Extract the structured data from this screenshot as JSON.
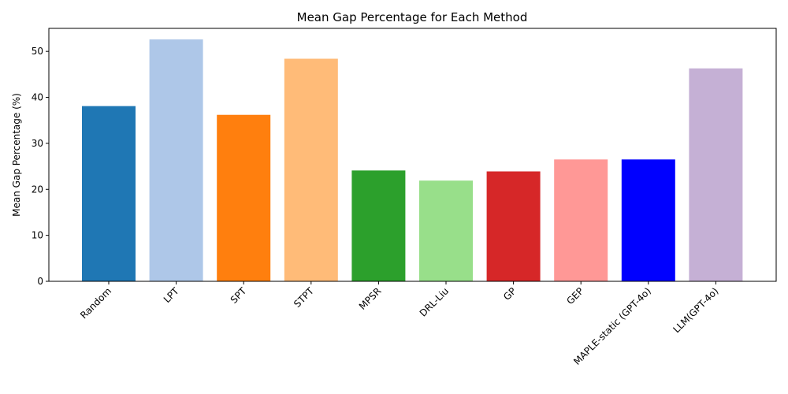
{
  "chart_data": {
    "type": "bar",
    "title": "Mean Gap Percentage for Each Method",
    "xlabel": "",
    "ylabel": "Mean Gap Percentage (%)",
    "ylim": [
      0,
      55
    ],
    "yticks": [
      0,
      10,
      20,
      30,
      40,
      50
    ],
    "grid": false,
    "categories": [
      "Random",
      "LPT",
      "SPT",
      "STPT",
      "MPSR",
      "DRL-Liu",
      "GP",
      "GEP",
      "MAPLE-static (GPT-4o)",
      "LLM(GPT-4o)"
    ],
    "values": [
      38.1,
      52.6,
      36.2,
      48.4,
      24.1,
      21.9,
      23.9,
      26.5,
      26.5,
      46.3
    ],
    "colors": [
      "#1f77b4",
      "#aec7e8",
      "#ff7f0e",
      "#ffbb78",
      "#2ca02c",
      "#98df8a",
      "#d62728",
      "#ff9896",
      "#0000ff",
      "#c5b0d5"
    ]
  }
}
